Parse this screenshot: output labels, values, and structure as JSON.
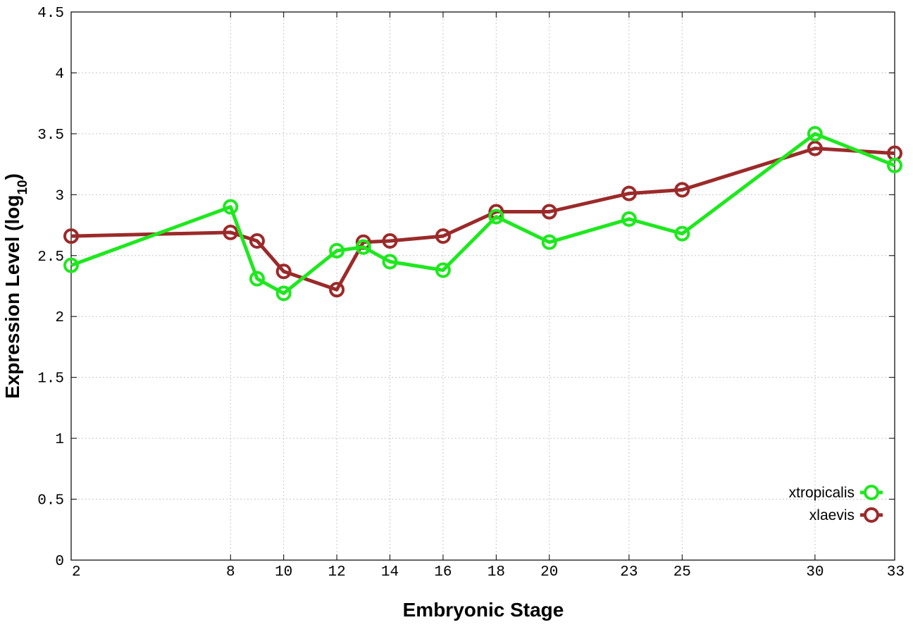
{
  "chart_data": {
    "type": "line",
    "title": "",
    "xlabel": "Embryonic Stage",
    "ylabel_main": "Expression Level (log",
    "ylabel_sub": "10",
    "ylabel_close": ")",
    "x": [
      2,
      8,
      9,
      10,
      12,
      13,
      14,
      16,
      18,
      20,
      23,
      25,
      30,
      33
    ],
    "x_ticks": [
      2,
      8,
      10,
      12,
      14,
      16,
      18,
      20,
      23,
      25,
      30,
      33
    ],
    "x_tick_labels": [
      "2",
      "8",
      "10",
      "12",
      "14",
      "16",
      "18",
      "20",
      "23",
      "25",
      "30",
      "33"
    ],
    "xlim": [
      2,
      33
    ],
    "y_ticks": [
      0,
      0.5,
      1,
      1.5,
      2,
      2.5,
      3,
      3.5,
      4,
      4.5
    ],
    "y_tick_labels": [
      "0",
      "0.5",
      "1",
      "1.5",
      "2",
      "2.5",
      "3",
      "3.5",
      "4",
      "4.5"
    ],
    "ylim": [
      0,
      4.5
    ],
    "grid": true,
    "legend_position": "bottom-right",
    "series": [
      {
        "name": "xtropicalis",
        "color": "#1ee81e",
        "values": [
          2.42,
          2.9,
          2.31,
          2.19,
          2.54,
          2.57,
          2.45,
          2.38,
          2.82,
          2.61,
          2.8,
          2.68,
          3.5,
          3.24
        ]
      },
      {
        "name": "xlaevis",
        "color": "#9b2a2a",
        "values": [
          2.66,
          2.69,
          2.62,
          2.37,
          2.22,
          2.61,
          2.62,
          2.66,
          2.86,
          2.86,
          3.01,
          3.04,
          3.38,
          3.34
        ]
      }
    ]
  }
}
